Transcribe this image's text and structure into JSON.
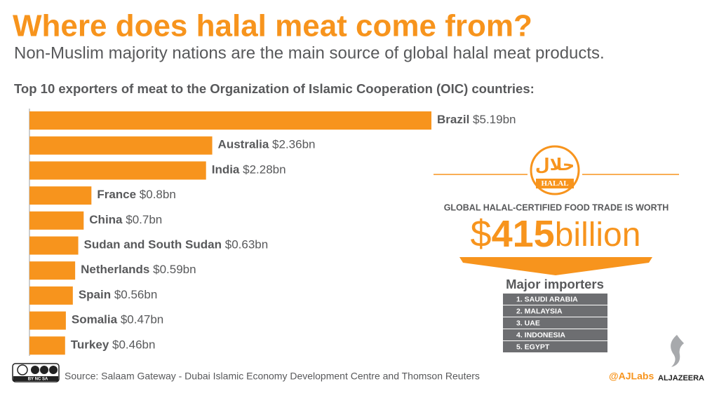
{
  "chart_data": {
    "type": "bar",
    "title": "Where does halal meat come from?",
    "subtitle": "Non-Muslim majority nations are the main source of global halal meat products.",
    "heading": "Top 10 exporters of meat to the Organization of Islamic Cooperation (OIC) countries:",
    "categories": [
      "Brazil",
      "Australia",
      "India",
      "France",
      "China",
      "Sudan and South Sudan",
      "Netherlands",
      "Spain",
      "Somalia",
      "Turkey"
    ],
    "values": [
      5.19,
      2.36,
      2.28,
      0.8,
      0.7,
      0.63,
      0.59,
      0.56,
      0.47,
      0.46
    ],
    "value_labels": [
      "$5.19bn",
      "$2.36bn",
      "$2.28bn",
      "$0.8bn",
      "$0.7bn",
      "$0.63bn",
      "$0.59bn",
      "$0.56bn",
      "$0.47bn",
      "$0.46bn"
    ],
    "color": "#f7941d"
  },
  "logo": {
    "arabic": "حلال",
    "label": "HALAL"
  },
  "trade": {
    "heading": "GLOBAL HALAL-CERTIFIED FOOD TRADE IS WORTH",
    "currency": "$",
    "amount": "415",
    "unit": "billion"
  },
  "importers": {
    "title": "Major importers",
    "items": [
      "1. SAUDI ARABIA",
      "2. MALAYSIA",
      "3. UAE",
      "4. INDONESIA",
      "5. EGYPT"
    ]
  },
  "footer": {
    "license": "BY NC SA",
    "source": "Source: Salaam Gateway - Dubai Islamic Economy Development Centre and Thomson Reuters",
    "handle": "@AJLabs",
    "brand": "ALJAZEERA"
  }
}
